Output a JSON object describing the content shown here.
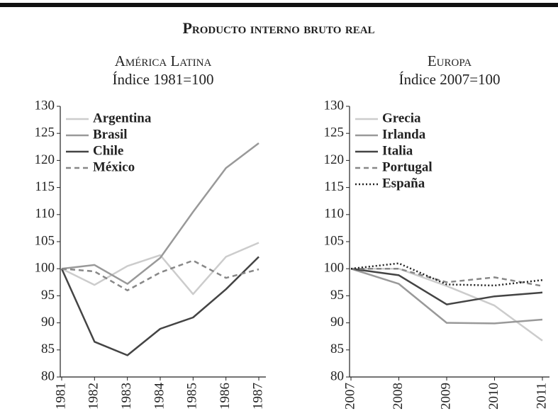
{
  "title": "Producto interno bruto real",
  "chart_data": [
    {
      "type": "line",
      "title": "América Latina",
      "subtitle": "Índice 1981=100",
      "categories": [
        "1981",
        "1982",
        "1983",
        "1984",
        "1985",
        "1986",
        "1987"
      ],
      "ylim": [
        80,
        130
      ],
      "yticks": [
        80,
        85,
        90,
        95,
        100,
        105,
        110,
        115,
        120,
        125,
        130
      ],
      "series": [
        {
          "name": "Argentina",
          "color": "#cccccc",
          "dash": "solid",
          "values": [
            100,
            97,
            100.5,
            102.5,
            95.3,
            102.2,
            104.8
          ]
        },
        {
          "name": "Brasil",
          "color": "#999999",
          "dash": "solid",
          "values": [
            100,
            100.7,
            97.2,
            102,
            110.5,
            118.6,
            123.2
          ]
        },
        {
          "name": "Chile",
          "color": "#444444",
          "dash": "solid",
          "values": [
            100,
            86.5,
            84,
            88.9,
            91,
            96.2,
            102.2
          ]
        },
        {
          "name": "México",
          "color": "#888888",
          "dash": "dashed",
          "values": [
            100,
            99.5,
            96,
            99.3,
            101.5,
            98.3,
            99.9
          ]
        }
      ]
    },
    {
      "type": "line",
      "title": "Europa",
      "subtitle": "Índice 2007=100",
      "categories": [
        "2007",
        "2008",
        "2009",
        "2010",
        "2011"
      ],
      "ylim": [
        80,
        130
      ],
      "yticks": [
        80,
        85,
        90,
        95,
        100,
        105,
        110,
        115,
        120,
        125,
        130
      ],
      "series": [
        {
          "name": "Grecia",
          "color": "#cccccc",
          "dash": "solid",
          "values": [
            100,
            100,
            96.8,
            93.2,
            86.7
          ]
        },
        {
          "name": "Irlanda",
          "color": "#999999",
          "dash": "solid",
          "values": [
            100,
            97.2,
            90,
            89.9,
            90.6
          ]
        },
        {
          "name": "Italia",
          "color": "#444444",
          "dash": "solid",
          "values": [
            100,
            98.8,
            93.4,
            94.9,
            95.6
          ]
        },
        {
          "name": "Portugal",
          "color": "#888888",
          "dash": "dashed",
          "values": [
            100,
            100,
            97.5,
            98.4,
            96.8
          ]
        },
        {
          "name": "España",
          "color": "#222222",
          "dash": "dotted",
          "values": [
            100,
            101,
            97.1,
            96.9,
            97.9
          ]
        }
      ]
    }
  ]
}
